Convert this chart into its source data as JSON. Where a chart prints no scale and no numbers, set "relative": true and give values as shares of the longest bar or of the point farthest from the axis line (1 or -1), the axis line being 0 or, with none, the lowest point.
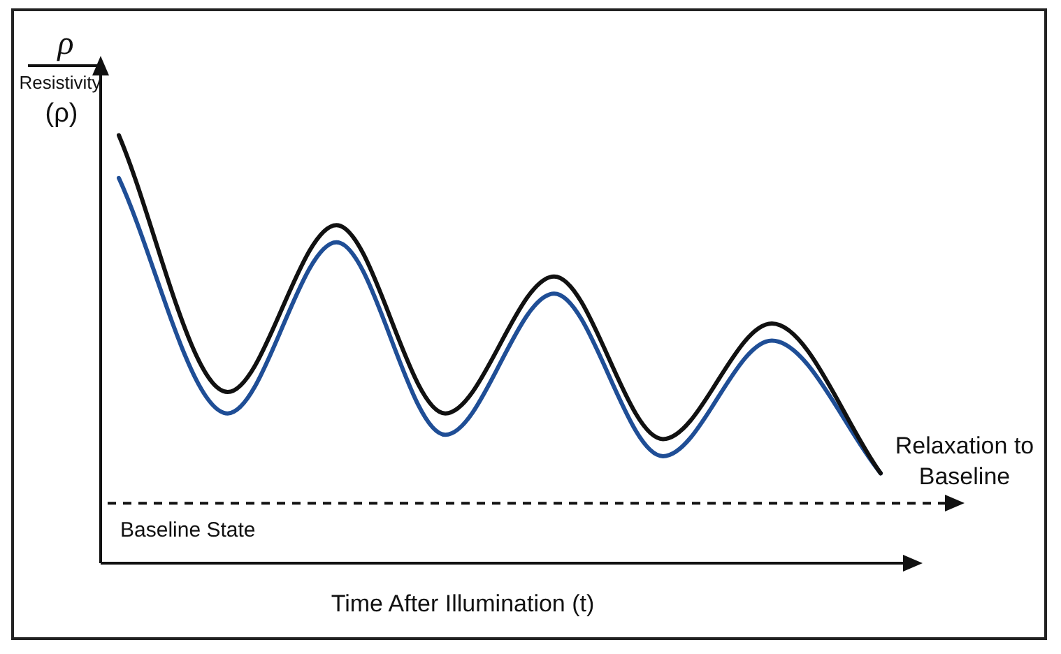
{
  "chart_data": {
    "type": "line",
    "relative": true,
    "xlabel": "Time After Illumination (t)",
    "ylabel": "Resistivity (ρ)",
    "categories": [
      null,
      null,
      null,
      null,
      null,
      null,
      null,
      null
    ],
    "series": [
      {
        "color": "#111111",
        "values": [
          1,
          0.4,
          0.79,
          0.35,
          0.67,
          0.29,
          0.56,
          0.21
        ]
      },
      {
        "color": "#1f4e96",
        "values": [
          0.9,
          0.35,
          0.75,
          0.3,
          0.63,
          0.25,
          0.52,
          0.21
        ]
      }
    ],
    "ref_lines": [
      {
        "axis": "y",
        "value": 0.14,
        "label": "Baseline State",
        "line_style": "dashed",
        "color": "#111111"
      }
    ],
    "annotations": [
      "ρ",
      "Relaxation to Baseline"
    ],
    "legend": false,
    "marker": "none",
    "line_style": "solid"
  }
}
